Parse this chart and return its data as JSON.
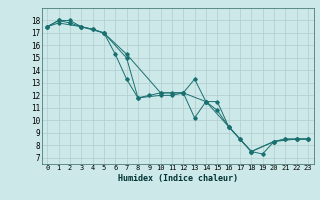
{
  "xlabel": "Humidex (Indice chaleur)",
  "xlim": [
    -0.5,
    23.5
  ],
  "ylim": [
    6.5,
    19.0
  ],
  "yticks": [
    7,
    8,
    9,
    10,
    11,
    12,
    13,
    14,
    15,
    16,
    17,
    18
  ],
  "xticks": [
    0,
    1,
    2,
    3,
    4,
    5,
    6,
    7,
    8,
    9,
    10,
    11,
    12,
    13,
    14,
    15,
    16,
    17,
    18,
    19,
    20,
    21,
    22,
    23
  ],
  "xtick_labels": [
    "0",
    "1",
    "2",
    "3",
    "4",
    "5",
    "6",
    "7",
    "8",
    "9",
    "10",
    "11",
    "12",
    "13",
    "14",
    "15",
    "16",
    "17",
    "18",
    "19",
    "20",
    "21",
    "22",
    "23"
  ],
  "bg_color": "#cce8e8",
  "grid_color": "#b0cccc",
  "line_color": "#1a7070",
  "lines": [
    {
      "x": [
        0,
        1,
        2,
        3,
        4,
        5,
        6,
        7,
        8,
        9,
        10,
        11,
        12,
        13,
        14,
        15,
        16,
        17,
        18,
        19,
        20,
        21,
        22,
        23
      ],
      "y": [
        17.5,
        18.0,
        18.0,
        17.5,
        17.3,
        17.0,
        15.3,
        13.3,
        11.8,
        12.0,
        12.2,
        12.2,
        12.2,
        13.3,
        11.5,
        10.8,
        9.5,
        8.5,
        7.5,
        7.3,
        8.3,
        8.5,
        8.5,
        8.5
      ]
    },
    {
      "x": [
        0,
        1,
        2,
        3,
        4,
        5,
        7,
        8,
        10,
        11,
        12,
        13,
        14,
        15,
        16,
        17,
        18,
        20,
        21,
        22,
        23
      ],
      "y": [
        17.5,
        18.0,
        17.8,
        17.5,
        17.3,
        17.0,
        15.0,
        11.8,
        12.0,
        12.0,
        12.2,
        10.2,
        11.5,
        11.5,
        9.5,
        8.5,
        7.5,
        8.3,
        8.5,
        8.5,
        8.5
      ]
    },
    {
      "x": [
        0,
        1,
        3,
        5,
        7,
        10,
        12,
        14,
        16,
        18,
        20,
        22,
        23
      ],
      "y": [
        17.5,
        17.8,
        17.5,
        17.0,
        15.3,
        12.2,
        12.2,
        11.5,
        9.5,
        7.5,
        8.3,
        8.5,
        8.5
      ]
    }
  ]
}
